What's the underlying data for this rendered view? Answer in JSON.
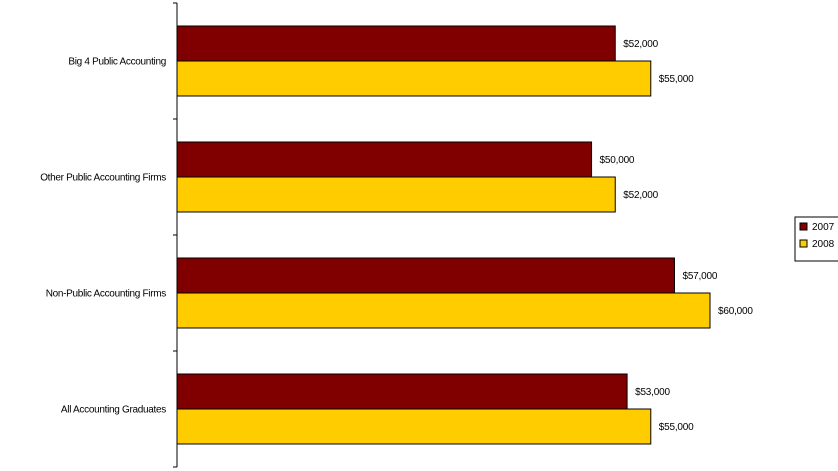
{
  "chart_data": {
    "type": "bar",
    "orientation": "horizontal",
    "title": "",
    "xlabel": "",
    "ylabel": "",
    "categories": [
      "Big 4 Public Accounting",
      "Other Public Accounting Firms",
      "Non-Public Accounting Firms",
      "All Accounting Graduates"
    ],
    "series": [
      {
        "name": "2007",
        "color": "#800000",
        "values": [
          52000,
          50000,
          57000,
          53000
        ],
        "labels": [
          "$52,000",
          "$50,000",
          "$57,000",
          "$53,000"
        ]
      },
      {
        "name": "2008",
        "color": "#FFCC00",
        "values": [
          55000,
          52000,
          60000,
          55000
        ],
        "labels": [
          "$55,000",
          "$52,000",
          "$60,000",
          "$55,000"
        ]
      }
    ],
    "xlim": [
      15000,
      60000
    ],
    "legend_position": "right",
    "grid": false
  }
}
